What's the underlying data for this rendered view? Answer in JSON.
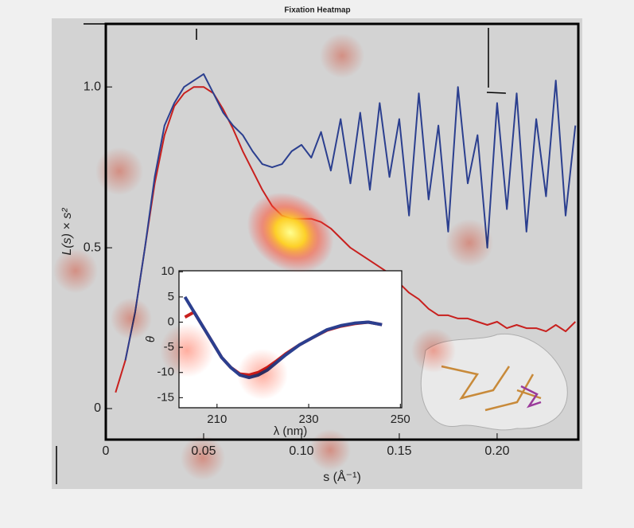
{
  "title": "Fixation Heatmap",
  "chart_data": [
    {
      "type": "line",
      "x_label": "s (Å⁻¹)",
      "y_label": "L(s) × s²",
      "x": [
        0.005,
        0.01,
        0.015,
        0.02,
        0.025,
        0.03,
        0.035,
        0.04,
        0.045,
        0.05,
        0.055,
        0.06,
        0.065,
        0.07,
        0.075,
        0.08,
        0.085,
        0.09,
        0.095,
        0.1,
        0.105,
        0.11,
        0.115,
        0.12,
        0.125,
        0.13,
        0.135,
        0.14,
        0.145,
        0.15,
        0.155,
        0.16,
        0.165,
        0.17,
        0.175,
        0.18,
        0.185,
        0.19,
        0.195,
        0.2,
        0.205,
        0.21,
        0.215,
        0.22,
        0.225,
        0.23,
        0.235,
        0.24
      ],
      "series": [
        {
          "color": "#c8201e",
          "values": [
            0.05,
            0.15,
            0.3,
            0.5,
            0.7,
            0.85,
            0.94,
            0.98,
            1.0,
            1.0,
            0.98,
            0.93,
            0.87,
            0.8,
            0.74,
            0.68,
            0.63,
            0.6,
            0.59,
            0.59,
            0.59,
            0.58,
            0.56,
            0.53,
            0.5,
            0.48,
            0.46,
            0.44,
            0.42,
            0.39,
            0.36,
            0.34,
            0.31,
            0.29,
            0.29,
            0.28,
            0.28,
            0.27,
            0.26,
            0.27,
            0.25,
            0.26,
            0.25,
            0.25,
            0.24,
            0.26,
            0.24,
            0.27
          ]
        },
        {
          "color": "#2b3f8f",
          "values": [
            null,
            0.15,
            0.3,
            0.5,
            0.72,
            0.88,
            0.95,
            1.0,
            1.02,
            1.04,
            0.98,
            0.92,
            0.88,
            0.85,
            0.8,
            0.76,
            0.75,
            0.76,
            0.8,
            0.82,
            0.78,
            0.86,
            0.74,
            0.9,
            0.7,
            0.92,
            0.68,
            0.95,
            0.72,
            0.9,
            0.6,
            0.98,
            0.65,
            0.88,
            0.55,
            1.0,
            0.7,
            0.85,
            0.5,
            0.95,
            0.62,
            0.98,
            0.55,
            0.9,
            0.66,
            1.02,
            0.6,
            0.88
          ]
        }
      ],
      "xlim": [
        0,
        0.2415
      ],
      "ylim": [
        -0.0965,
        1.196
      ],
      "xticks": [
        0,
        0.05,
        {
          "value": 0.1,
          "label": "0.10"
        },
        0.15,
        {
          "value": 0.2,
          "label": "0.20"
        }
      ],
      "yticks": [
        0,
        0.5,
        {
          "value": 1.0,
          "label": "1.0"
        }
      ]
    },
    {
      "type": "line",
      "x_label": "λ (nm)",
      "y_label": "θ",
      "x": [
        203,
        205,
        207,
        209,
        211,
        213,
        215,
        217,
        219,
        221,
        223,
        225,
        228,
        231,
        234,
        237,
        240,
        243,
        246
      ],
      "series": [
        {
          "color": "#c8201e",
          "values": [
            1,
            2,
            -1,
            -4,
            -7,
            -9,
            -10.3,
            -10.5,
            -10,
            -9,
            -7.7,
            -6.3,
            -4.5,
            -3,
            -1.6,
            -0.8,
            -0.3,
            0,
            -0.5
          ]
        },
        {
          "color": "#2b3f8f",
          "values": [
            5,
            2,
            -1,
            -4,
            -7,
            -9,
            -10.5,
            -11,
            -10.5,
            -9.5,
            -8,
            -6.5,
            -4.5,
            -3,
            -1.5,
            -0.7,
            -0.2,
            0,
            -0.5
          ]
        }
      ],
      "xlim": [
        201.7,
        250.3
      ],
      "ylim": [
        -17,
        10.2
      ],
      "xticks": [
        210,
        230,
        250
      ],
      "yticks": [
        10,
        5,
        0,
        -5,
        -10,
        -15
      ]
    }
  ]
}
